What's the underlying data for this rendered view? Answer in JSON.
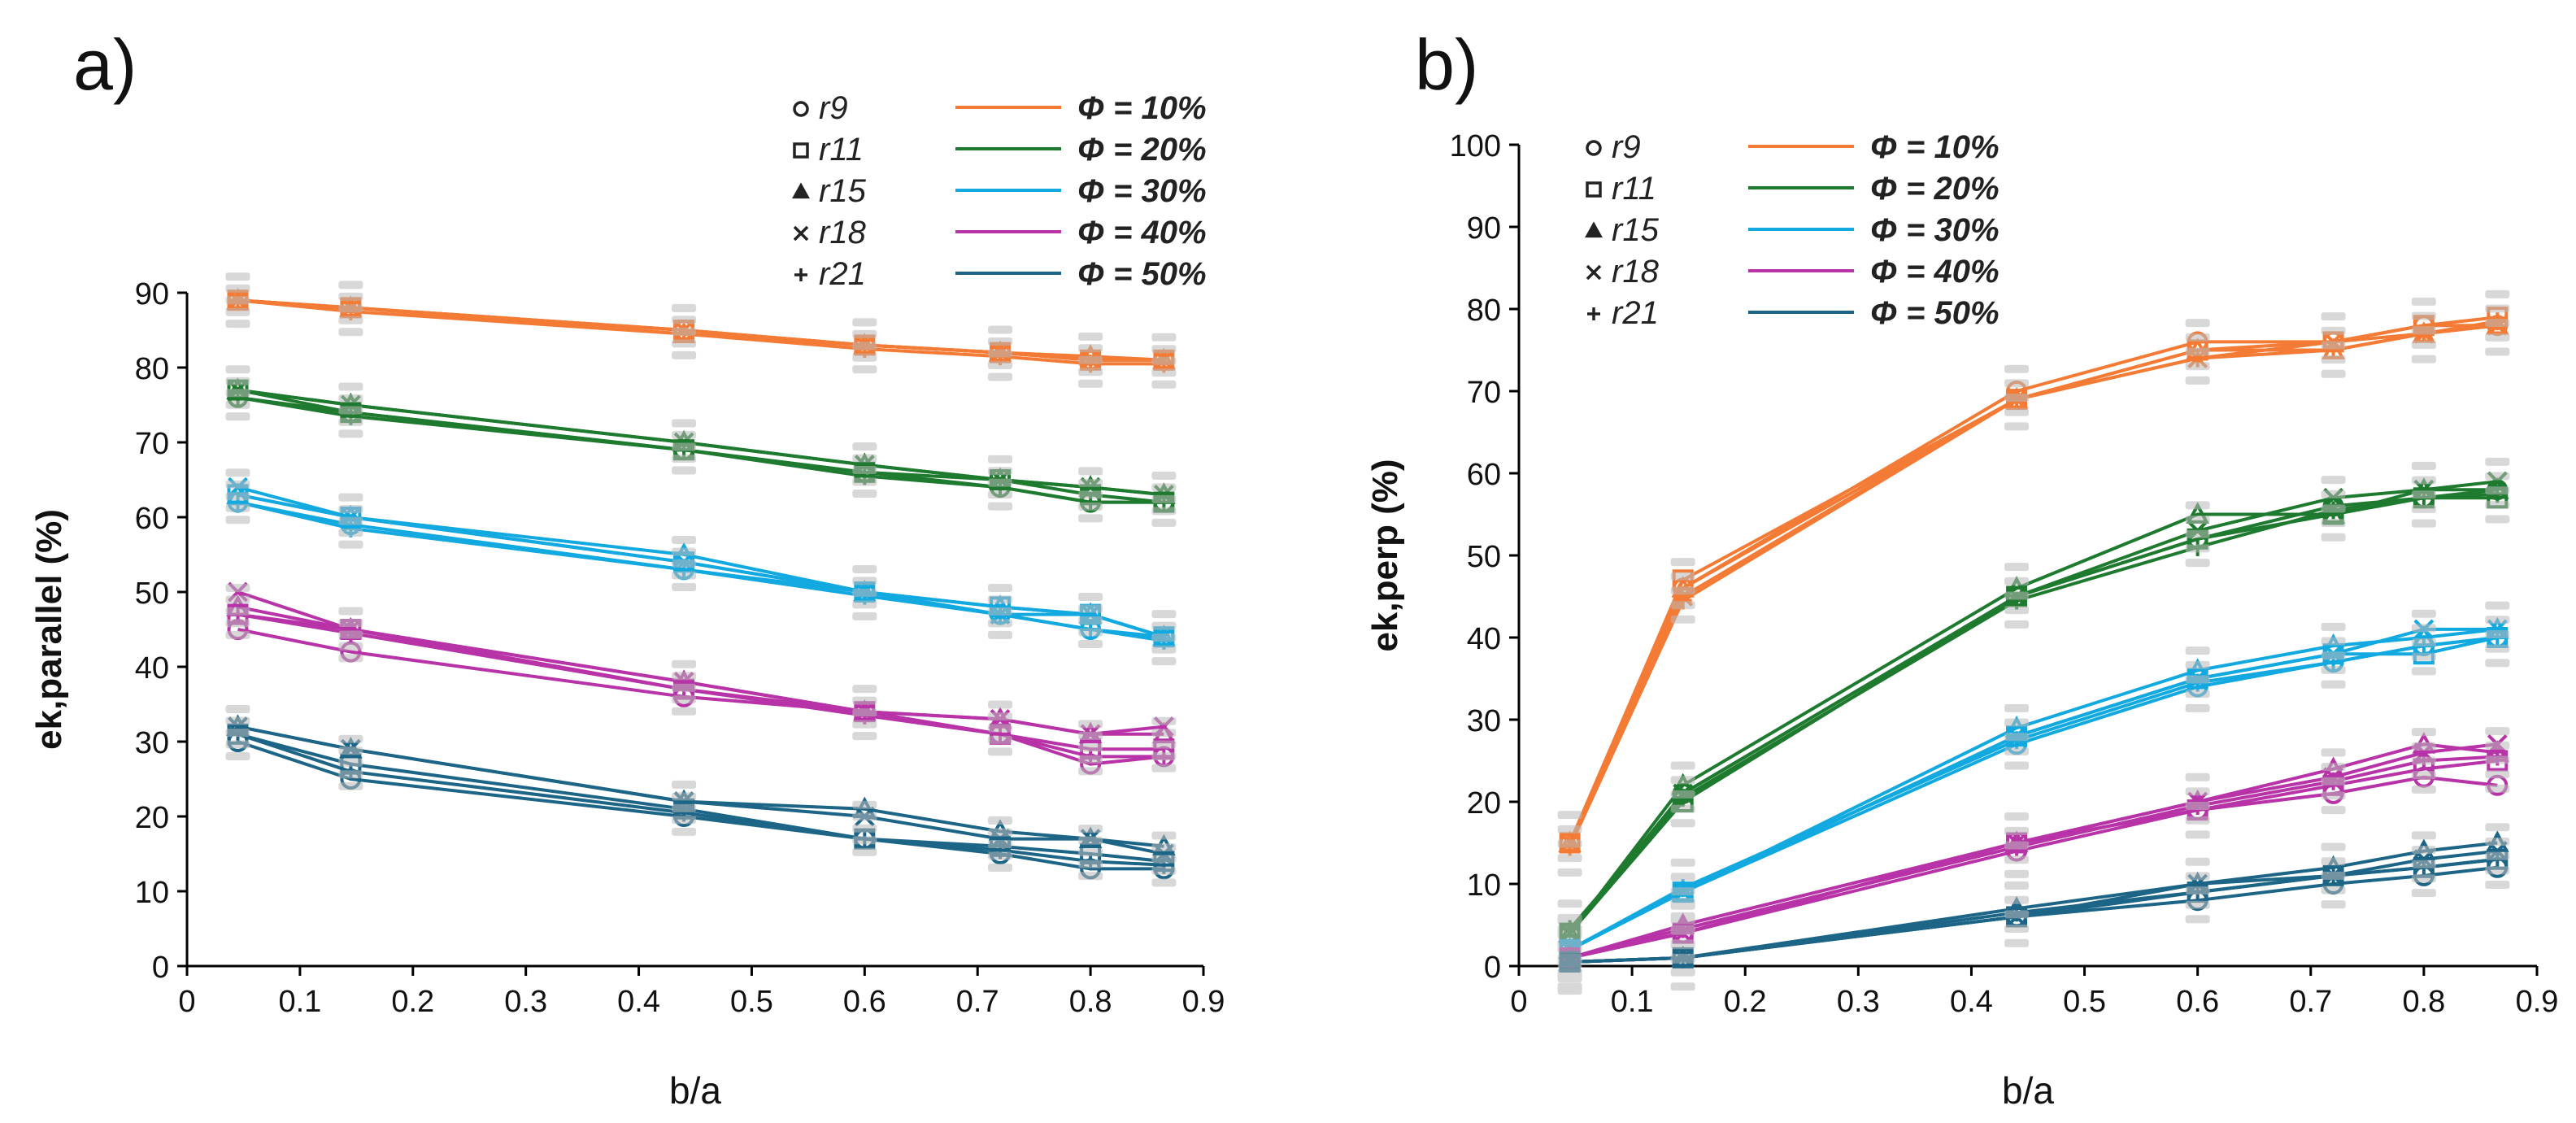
{
  "chart_data": [
    {
      "type": "line",
      "panel_label": "a)",
      "xlabel": "b/a",
      "ylabel": "ek,parallel (%)",
      "xlim": [
        0,
        0.9
      ],
      "ylim": [
        0,
        90
      ],
      "xticks": [
        "0",
        "0.1",
        "0.2",
        "0.3",
        "0.4",
        "0.5",
        "0.6",
        "0.7",
        "0.8",
        "0.9"
      ],
      "yticks": [
        "0",
        "10",
        "20",
        "30",
        "40",
        "50",
        "60",
        "70",
        "80",
        "90"
      ],
      "x": [
        0.045,
        0.145,
        0.44,
        0.6,
        0.72,
        0.8,
        0.865
      ],
      "legend": {
        "markers": [
          {
            "symbol": "circle",
            "label": "r9"
          },
          {
            "symbol": "square",
            "label": "r11"
          },
          {
            "symbol": "triangle",
            "label": "r15"
          },
          {
            "symbol": "x",
            "label": "r18"
          },
          {
            "symbol": "plus",
            "label": "r21"
          }
        ],
        "porosity": [
          {
            "label": "Φ = 10%",
            "color": "#F47B35"
          },
          {
            "label": "Φ = 20%",
            "color": "#1E7A2E"
          },
          {
            "label": "Φ = 30%",
            "color": "#12A9E0"
          },
          {
            "label": "Φ = 40%",
            "color": "#B733A7"
          },
          {
            "label": "Φ = 50%",
            "color": "#1D6587"
          }
        ]
      },
      "series": [
        {
          "name": "Φ = 10% r9",
          "group": 0,
          "marker": "circle",
          "values": [
            89,
            88,
            85,
            83,
            82,
            81,
            81
          ]
        },
        {
          "name": "Φ = 10% r11",
          "group": 0,
          "marker": "square",
          "values": [
            89,
            88,
            85,
            83,
            82,
            81,
            81
          ]
        },
        {
          "name": "Φ = 10% r15",
          "group": 0,
          "marker": "triangle",
          "values": [
            89,
            88,
            84.5,
            83,
            82,
            81.5,
            81
          ]
        },
        {
          "name": "Φ = 10% r18",
          "group": 0,
          "marker": "x",
          "values": [
            89,
            88,
            85,
            83,
            82,
            81,
            81
          ]
        },
        {
          "name": "Φ = 10% r21",
          "group": 0,
          "marker": "plus",
          "values": [
            89,
            87.5,
            84.5,
            82.5,
            81.5,
            80.5,
            80.5
          ]
        },
        {
          "name": "Φ = 20% r9",
          "group": 1,
          "marker": "circle",
          "values": [
            76,
            74,
            69,
            66,
            64,
            62,
            62
          ]
        },
        {
          "name": "Φ = 20% r11",
          "group": 1,
          "marker": "square",
          "values": [
            77,
            74,
            69,
            66,
            65,
            63,
            62
          ]
        },
        {
          "name": "Φ = 20% r15",
          "group": 1,
          "marker": "triangle",
          "values": [
            77,
            75,
            70,
            67,
            65,
            64,
            63
          ]
        },
        {
          "name": "Φ = 20% r18",
          "group": 1,
          "marker": "x",
          "values": [
            77,
            75,
            70,
            67,
            65,
            64,
            63
          ]
        },
        {
          "name": "Φ = 20% r21",
          "group": 1,
          "marker": "plus",
          "values": [
            76,
            73.5,
            69,
            65.5,
            64,
            62,
            62
          ]
        },
        {
          "name": "Φ = 30% r9",
          "group": 2,
          "marker": "circle",
          "values": [
            62,
            59,
            53,
            50,
            47,
            45,
            44
          ]
        },
        {
          "name": "Φ = 30% r11",
          "group": 2,
          "marker": "square",
          "values": [
            63,
            60,
            54,
            50,
            48,
            47,
            44
          ]
        },
        {
          "name": "Φ = 30% r15",
          "group": 2,
          "marker": "triangle",
          "values": [
            63,
            60,
            55,
            50,
            48,
            47,
            44
          ]
        },
        {
          "name": "Φ = 30% r18",
          "group": 2,
          "marker": "x",
          "values": [
            64,
            60,
            54,
            50,
            47,
            47,
            44
          ]
        },
        {
          "name": "Φ = 30% r21",
          "group": 2,
          "marker": "plus",
          "values": [
            62,
            58.5,
            53,
            49.5,
            47,
            45,
            43.5
          ]
        },
        {
          "name": "Φ = 40% r9",
          "group": 3,
          "marker": "circle",
          "values": [
            45,
            42,
            36,
            34,
            31,
            27,
            28
          ]
        },
        {
          "name": "Φ = 40% r11",
          "group": 3,
          "marker": "square",
          "values": [
            47,
            45,
            37,
            34,
            31,
            29,
            29
          ]
        },
        {
          "name": "Φ = 40% r15",
          "group": 3,
          "marker": "triangle",
          "values": [
            48,
            45,
            38,
            34,
            33,
            31,
            31
          ]
        },
        {
          "name": "Φ = 40% r18",
          "group": 3,
          "marker": "x",
          "values": [
            50,
            45,
            38,
            34,
            33,
            31,
            32
          ]
        },
        {
          "name": "Φ = 40% r21",
          "group": 3,
          "marker": "plus",
          "values": [
            47,
            44.5,
            37,
            33.5,
            31,
            28,
            28
          ]
        },
        {
          "name": "Φ = 50% r9",
          "group": 4,
          "marker": "circle",
          "values": [
            30,
            25,
            20,
            17,
            15,
            13,
            13
          ]
        },
        {
          "name": "Φ = 50% r11",
          "group": 4,
          "marker": "square",
          "values": [
            31,
            27,
            21,
            17,
            16,
            15,
            14
          ]
        },
        {
          "name": "Φ = 50% r15",
          "group": 4,
          "marker": "triangle",
          "values": [
            32,
            29,
            22,
            21,
            18,
            17,
            16
          ]
        },
        {
          "name": "Φ = 50% r18",
          "group": 4,
          "marker": "x",
          "values": [
            32,
            29,
            22,
            20,
            17,
            17,
            15
          ]
        },
        {
          "name": "Φ = 50% r21",
          "group": 4,
          "marker": "plus",
          "values": [
            31,
            26,
            20.5,
            17,
            15.5,
            14,
            13.5
          ]
        }
      ]
    },
    {
      "type": "line",
      "panel_label": "b)",
      "xlabel": "b/a",
      "ylabel": "ek,perp (%)",
      "xlim": [
        0,
        0.9
      ],
      "ylim": [
        0,
        100
      ],
      "xticks": [
        "0",
        "0.1",
        "0.2",
        "0.3",
        "0.4",
        "0.5",
        "0.6",
        "0.7",
        "0.8",
        "0.9"
      ],
      "yticks": [
        "0",
        "10",
        "20",
        "30",
        "40",
        "50",
        "60",
        "70",
        "80",
        "90",
        "100"
      ],
      "x": [
        0.045,
        0.145,
        0.44,
        0.6,
        0.72,
        0.8,
        0.865
      ],
      "legend": {
        "markers": [
          {
            "symbol": "circle",
            "label": "r9"
          },
          {
            "symbol": "square",
            "label": "r11"
          },
          {
            "symbol": "triangle",
            "label": "r15"
          },
          {
            "symbol": "x",
            "label": "r18"
          },
          {
            "symbol": "plus",
            "label": "r21"
          }
        ],
        "porosity": [
          {
            "label": "Φ = 10%",
            "color": "#F47B35"
          },
          {
            "label": "Φ = 20%",
            "color": "#1E7A2E"
          },
          {
            "label": "Φ = 30%",
            "color": "#12A9E0"
          },
          {
            "label": "Φ = 40%",
            "color": "#B733A7"
          },
          {
            "label": "Φ = 50%",
            "color": "#1D6587"
          }
        ]
      },
      "series": [
        {
          "name": "Φ = 10% r9",
          "group": 0,
          "marker": "circle",
          "values": [
            15,
            46,
            70,
            76,
            76,
            78,
            78
          ]
        },
        {
          "name": "Φ = 10% r11",
          "group": 0,
          "marker": "square",
          "values": [
            15,
            47,
            69,
            75,
            76,
            78,
            79
          ]
        },
        {
          "name": "Φ = 10% r15",
          "group": 0,
          "marker": "triangle",
          "values": [
            15,
            46,
            69,
            75,
            75,
            77,
            78
          ]
        },
        {
          "name": "Φ = 10% r18",
          "group": 0,
          "marker": "x",
          "values": [
            15,
            45,
            69,
            74,
            76,
            77,
            78
          ]
        },
        {
          "name": "Φ = 10% r21",
          "group": 0,
          "marker": "plus",
          "values": [
            14.5,
            44.5,
            69,
            74,
            75,
            77,
            78.5
          ]
        },
        {
          "name": "Φ = 20% r9",
          "group": 1,
          "marker": "circle",
          "values": [
            4,
            21,
            45,
            52,
            56,
            57,
            58
          ]
        },
        {
          "name": "Φ = 20% r11",
          "group": 1,
          "marker": "square",
          "values": [
            4,
            20,
            45,
            52,
            55,
            57,
            57
          ]
        },
        {
          "name": "Φ = 20% r15",
          "group": 1,
          "marker": "triangle",
          "values": [
            4,
            22,
            46,
            55,
            55,
            58,
            58
          ]
        },
        {
          "name": "Φ = 20% r18",
          "group": 1,
          "marker": "x",
          "values": [
            4,
            21,
            45,
            53,
            57,
            58,
            59
          ]
        },
        {
          "name": "Φ = 20% r21",
          "group": 1,
          "marker": "plus",
          "values": [
            4.5,
            20.5,
            44.5,
            51,
            55.5,
            57,
            57.5
          ]
        },
        {
          "name": "Φ = 30% r9",
          "group": 2,
          "marker": "circle",
          "values": [
            2,
            9,
            27,
            34,
            37,
            39,
            40
          ]
        },
        {
          "name": "Φ = 30% r11",
          "group": 2,
          "marker": "square",
          "values": [
            2,
            9,
            28,
            35,
            38,
            38,
            40
          ]
        },
        {
          "name": "Φ = 30% r15",
          "group": 2,
          "marker": "triangle",
          "values": [
            2,
            9,
            29,
            36,
            39,
            40,
            41
          ]
        },
        {
          "name": "Φ = 30% r18",
          "group": 2,
          "marker": "x",
          "values": [
            2,
            9,
            28,
            35,
            38,
            41,
            41
          ]
        },
        {
          "name": "Φ = 30% r21",
          "group": 2,
          "marker": "plus",
          "values": [
            2,
            9.5,
            27.5,
            34.5,
            37,
            39,
            40
          ]
        },
        {
          "name": "Φ = 40% r9",
          "group": 3,
          "marker": "circle",
          "values": [
            1,
            4,
            14,
            19,
            21,
            23,
            22
          ]
        },
        {
          "name": "Φ = 40% r11",
          "group": 3,
          "marker": "square",
          "values": [
            1,
            4,
            15,
            19,
            22,
            24,
            25
          ]
        },
        {
          "name": "Φ = 40% r15",
          "group": 3,
          "marker": "triangle",
          "values": [
            1,
            5,
            15,
            20,
            24,
            27,
            26
          ]
        },
        {
          "name": "Φ = 40% r18",
          "group": 3,
          "marker": "x",
          "values": [
            1,
            4,
            15,
            20,
            23,
            26,
            27
          ]
        },
        {
          "name": "Φ = 40% r21",
          "group": 3,
          "marker": "plus",
          "values": [
            1,
            4.5,
            14.5,
            19.5,
            22.5,
            25,
            25.5
          ]
        },
        {
          "name": "Φ = 50% r9",
          "group": 4,
          "marker": "circle",
          "values": [
            0.5,
            1,
            6,
            8,
            10,
            11,
            12
          ]
        },
        {
          "name": "Φ = 50% r11",
          "group": 4,
          "marker": "square",
          "values": [
            0.5,
            1,
            6,
            9,
            11,
            12,
            13
          ]
        },
        {
          "name": "Φ = 50% r15",
          "group": 4,
          "marker": "triangle",
          "values": [
            0.5,
            1,
            7,
            10,
            12,
            14,
            15
          ]
        },
        {
          "name": "Φ = 50% r18",
          "group": 4,
          "marker": "x",
          "values": [
            0.5,
            1,
            6,
            10,
            11,
            13,
            14
          ]
        },
        {
          "name": "Φ = 50% r21",
          "group": 4,
          "marker": "plus",
          "values": [
            0.5,
            1,
            6.5,
            9,
            11,
            12,
            13
          ]
        }
      ]
    }
  ]
}
